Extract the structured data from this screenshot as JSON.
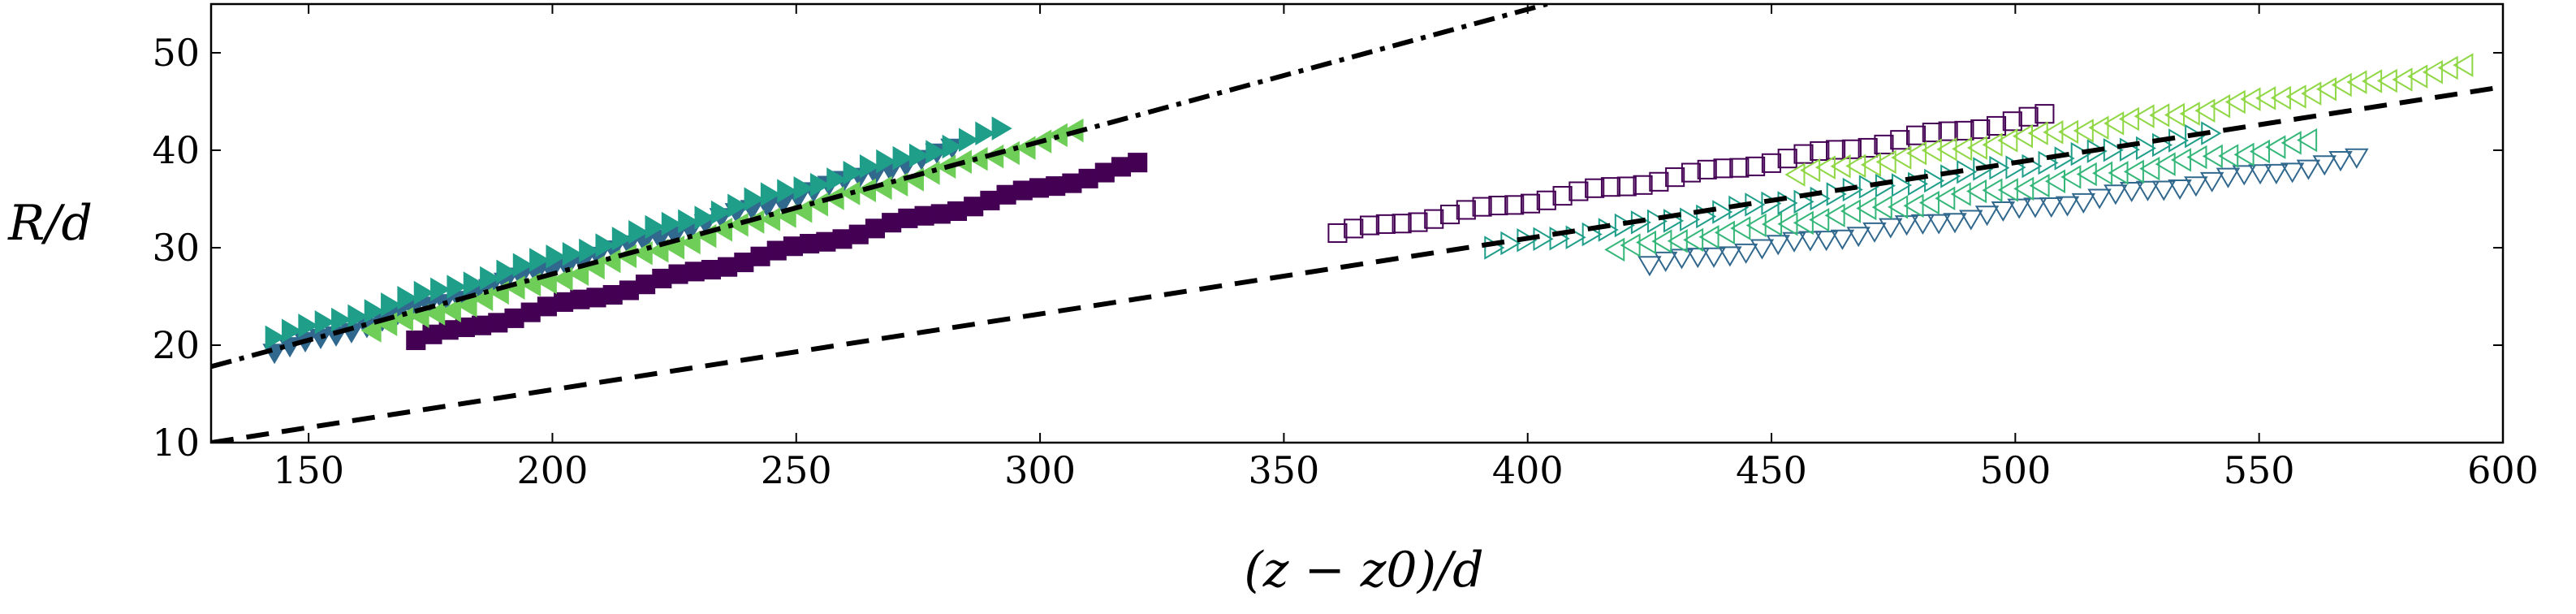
{
  "chart_data": {
    "type": "scatter",
    "title": "",
    "xlabel": "(z − z0)/d",
    "ylabel": "R/d",
    "xlim": [
      130,
      600
    ],
    "ylim": [
      10,
      55
    ],
    "xticks": [
      150,
      200,
      250,
      300,
      350,
      400,
      450,
      500,
      550,
      600
    ],
    "yticks": [
      10,
      20,
      30,
      40,
      50
    ],
    "xtick_labels": [
      "150",
      "200",
      "250",
      "300",
      "350",
      "400",
      "450",
      "500",
      "550",
      "600"
    ],
    "ytick_labels": [
      "10",
      "20",
      "30",
      "40",
      "50"
    ],
    "grid": false,
    "legend": "none",
    "series": [
      {
        "name": "filled-square-purple",
        "marker": "square",
        "filled": true,
        "color": "#440154",
        "x_start": 172,
        "x_end": 320,
        "y_start": 20.5,
        "y_end": 38.5
      },
      {
        "name": "filled-triangle-down-blue",
        "marker": "triangle-down",
        "filled": true,
        "color": "#31688e",
        "x_start": 143,
        "x_end": 282,
        "y_start": 19.2,
        "y_end": 40.0
      },
      {
        "name": "filled-triangle-right-teal",
        "marker": "triangle-right",
        "filled": true,
        "color": "#1f9e89",
        "x_start": 143,
        "x_end": 292,
        "y_start": 20.8,
        "y_end": 42.0
      },
      {
        "name": "filled-triangle-left-green",
        "marker": "triangle-left",
        "filled": true,
        "color": "#6ece58",
        "x_start": 163,
        "x_end": 307,
        "y_start": 21.5,
        "y_end": 41.8
      },
      {
        "name": "open-square-purple",
        "marker": "square",
        "filled": false,
        "color": "#440154",
        "x_start": 361,
        "x_end": 506,
        "y_start": 31.5,
        "y_end": 43.5
      },
      {
        "name": "open-triangle-down-blue",
        "marker": "triangle-down",
        "filled": false,
        "color": "#31688e",
        "x_start": 425,
        "x_end": 570,
        "y_start": 28.2,
        "y_end": 39.0
      },
      {
        "name": "open-triangle-right-teal",
        "marker": "triangle-right",
        "filled": false,
        "color": "#1f9e89",
        "x_start": 393,
        "x_end": 540,
        "y_start": 30.0,
        "y_end": 41.5
      },
      {
        "name": "open-triangle-left-teal",
        "marker": "triangle-left",
        "filled": false,
        "color": "#35b779",
        "x_start": 418,
        "x_end": 560,
        "y_start": 29.8,
        "y_end": 40.8
      },
      {
        "name": "open-triangle-left-green",
        "marker": "triangle-left",
        "filled": false,
        "color": "#8fd744",
        "x_start": 455,
        "x_end": 592,
        "y_start": 37.5,
        "y_end": 48.5
      }
    ],
    "lines": [
      {
        "name": "dash-dot-fit",
        "style": "dashdot",
        "color": "#000000",
        "x": [
          130,
          404
        ],
        "y": [
          17.8,
          55
        ]
      },
      {
        "name": "dashed-fit",
        "style": "dashed",
        "color": "#000000",
        "x": [
          130,
          600
        ],
        "y": [
          10.0,
          46.5
        ]
      }
    ],
    "markers_per_series": 45
  }
}
